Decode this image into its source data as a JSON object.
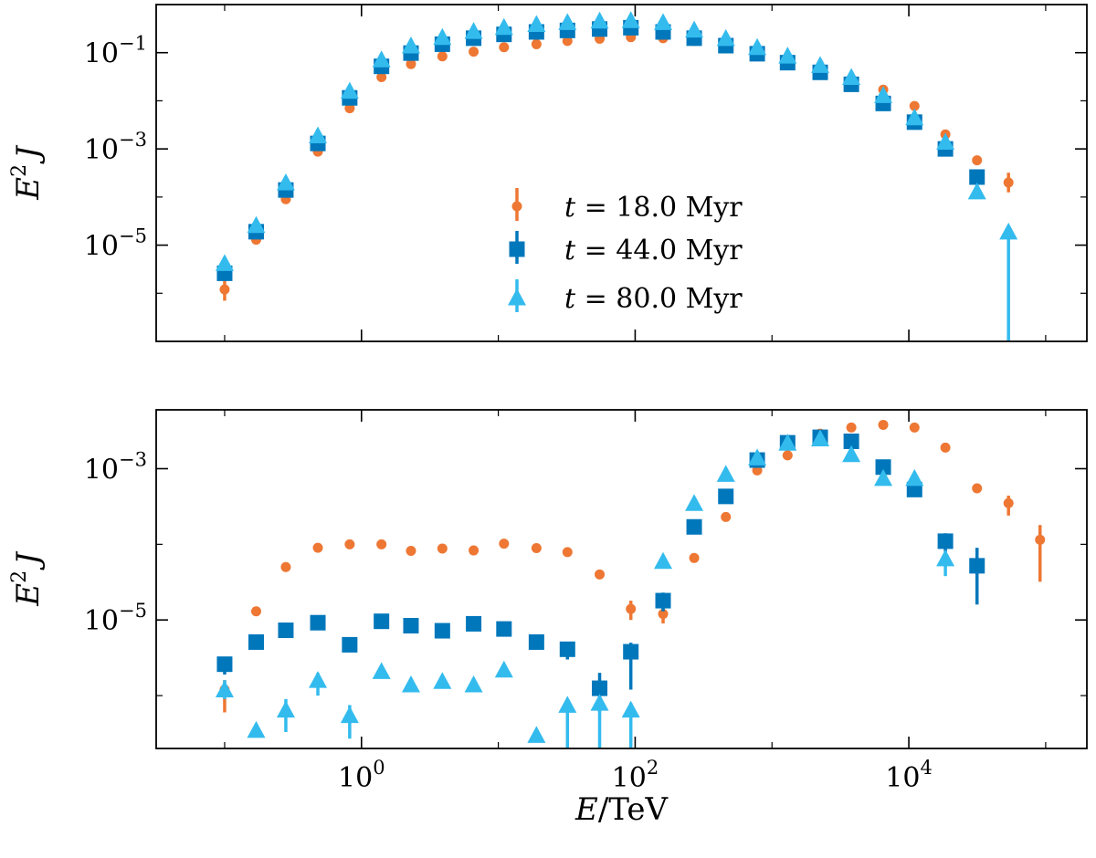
{
  "colors": {
    "t18": "#ee7733",
    "t44": "#0077bb",
    "t80": "#33bbee"
  },
  "chart_data": [
    {
      "type": "scatter",
      "panel": "top",
      "xscale": "log",
      "yscale": "log",
      "xlim": [
        0.0316,
        200000
      ],
      "ylim": [
        1e-07,
        1
      ],
      "xticks": [
        1,
        100,
        10000
      ],
      "xtick_labels": [
        "",
        "",
        ""
      ],
      "yticks": [
        1e-05,
        0.001,
        0.1
      ],
      "ytick_labels": [
        "10^-5",
        "10^-3",
        "10^-1"
      ],
      "ylabel": "E^2 J",
      "xlabel": "",
      "legend": {
        "placement": "center",
        "entries": [
          "t = 18.0 Myr",
          "t = 44.0 Myr",
          "t = 80.0 Myr"
        ]
      },
      "series": [
        {
          "name": "t = 18.0 Myr",
          "marker": "circle",
          "color_key": "t18",
          "points": [
            {
              "x": 0.1,
              "y": 1.2e-06,
              "lo": 7e-07,
              "hi": 2e-06
            },
            {
              "x": 0.17,
              "y": 1.3e-05
            },
            {
              "x": 0.28,
              "y": 9e-05
            },
            {
              "x": 0.48,
              "y": 0.00088
            },
            {
              "x": 0.82,
              "y": 0.007
            },
            {
              "x": 1.4,
              "y": 0.031
            },
            {
              "x": 2.3,
              "y": 0.058
            },
            {
              "x": 3.9,
              "y": 0.084
            },
            {
              "x": 6.6,
              "y": 0.105
            },
            {
              "x": 11,
              "y": 0.13
            },
            {
              "x": 19,
              "y": 0.15
            },
            {
              "x": 32,
              "y": 0.175
            },
            {
              "x": 55,
              "y": 0.195
            },
            {
              "x": 93,
              "y": 0.21
            },
            {
              "x": 160,
              "y": 0.2
            },
            {
              "x": 270,
              "y": 0.175
            },
            {
              "x": 460,
              "y": 0.14
            },
            {
              "x": 780,
              "y": 0.105
            },
            {
              "x": 1300,
              "y": 0.068
            },
            {
              "x": 2250,
              "y": 0.046
            },
            {
              "x": 3800,
              "y": 0.029
            },
            {
              "x": 6500,
              "y": 0.017
            },
            {
              "x": 11000,
              "y": 0.0078
            },
            {
              "x": 18500,
              "y": 0.002
            },
            {
              "x": 31500,
              "y": 0.00058
            },
            {
              "x": 53500,
              "y": 0.0002,
              "lo": 0.000125,
              "hi": 0.00032
            }
          ]
        },
        {
          "name": "t = 44.0 Myr",
          "marker": "square",
          "color_key": "t44",
          "points": [
            {
              "x": 0.1,
              "y": 2.6e-06
            },
            {
              "x": 0.17,
              "y": 1.9e-05
            },
            {
              "x": 0.28,
              "y": 0.00014
            },
            {
              "x": 0.48,
              "y": 0.0013
            },
            {
              "x": 0.82,
              "y": 0.0115
            },
            {
              "x": 1.4,
              "y": 0.052
            },
            {
              "x": 2.3,
              "y": 0.098
            },
            {
              "x": 3.9,
              "y": 0.15
            },
            {
              "x": 6.6,
              "y": 0.2
            },
            {
              "x": 11,
              "y": 0.24
            },
            {
              "x": 19,
              "y": 0.27
            },
            {
              "x": 32,
              "y": 0.29
            },
            {
              "x": 55,
              "y": 0.31
            },
            {
              "x": 93,
              "y": 0.33
            },
            {
              "x": 160,
              "y": 0.27
            },
            {
              "x": 270,
              "y": 0.2
            },
            {
              "x": 460,
              "y": 0.14
            },
            {
              "x": 780,
              "y": 0.095
            },
            {
              "x": 1300,
              "y": 0.062
            },
            {
              "x": 2250,
              "y": 0.039
            },
            {
              "x": 3800,
              "y": 0.022
            },
            {
              "x": 6500,
              "y": 0.0088
            },
            {
              "x": 11000,
              "y": 0.0036
            },
            {
              "x": 18500,
              "y": 0.001
            },
            {
              "x": 31500,
              "y": 0.00026,
              "lo": 0.00018,
              "hi": 0.00032
            }
          ]
        },
        {
          "name": "t = 80.0 Myr",
          "marker": "triangle",
          "color_key": "t80",
          "points": [
            {
              "x": 0.1,
              "y": 4.2e-06
            },
            {
              "x": 0.17,
              "y": 2.6e-05
            },
            {
              "x": 0.28,
              "y": 0.0002
            },
            {
              "x": 0.48,
              "y": 0.0019
            },
            {
              "x": 0.82,
              "y": 0.016
            },
            {
              "x": 1.4,
              "y": 0.072
            },
            {
              "x": 2.3,
              "y": 0.14
            },
            {
              "x": 3.9,
              "y": 0.21
            },
            {
              "x": 6.6,
              "y": 0.28
            },
            {
              "x": 11,
              "y": 0.34
            },
            {
              "x": 19,
              "y": 0.39
            },
            {
              "x": 32,
              "y": 0.43
            },
            {
              "x": 55,
              "y": 0.46
            },
            {
              "x": 93,
              "y": 0.47
            },
            {
              "x": 160,
              "y": 0.43
            },
            {
              "x": 270,
              "y": 0.3
            },
            {
              "x": 460,
              "y": 0.2
            },
            {
              "x": 780,
              "y": 0.13
            },
            {
              "x": 1300,
              "y": 0.086
            },
            {
              "x": 2250,
              "y": 0.055
            },
            {
              "x": 3800,
              "y": 0.031
            },
            {
              "x": 6500,
              "y": 0.013
            },
            {
              "x": 11000,
              "y": 0.0045
            },
            {
              "x": 18500,
              "y": 0.0014
            },
            {
              "x": 31500,
              "y": 0.00013
            },
            {
              "x": 53500,
              "y": 1.9e-05,
              "lo": 1e-07,
              "hi": 2.4e-05
            }
          ]
        }
      ]
    },
    {
      "type": "scatter",
      "panel": "bottom",
      "xscale": "log",
      "yscale": "log",
      "xlim": [
        0.0316,
        200000
      ],
      "ylim": [
        2e-07,
        0.006
      ],
      "xticks": [
        1,
        100,
        10000
      ],
      "xtick_labels": [
        "10^0",
        "10^2",
        "10^4"
      ],
      "yticks": [
        1e-05,
        0.001
      ],
      "ytick_labels": [
        "10^-5",
        "10^-3"
      ],
      "ylabel": "E^2 J",
      "xlabel": "E/TeV",
      "series": [
        {
          "name": "t = 18.0 Myr",
          "marker": "circle",
          "color_key": "t18",
          "points": [
            {
              "x": 0.1,
              "y": 1.2e-06,
              "lo": 6e-07,
              "hi": 1.6e-06
            },
            {
              "x": 0.17,
              "y": 1.3e-05
            },
            {
              "x": 0.28,
              "y": 5e-05
            },
            {
              "x": 0.48,
              "y": 9e-05
            },
            {
              "x": 0.82,
              "y": 0.0001
            },
            {
              "x": 1.4,
              "y": 0.0001
            },
            {
              "x": 2.3,
              "y": 8.2e-05
            },
            {
              "x": 3.9,
              "y": 8.8e-05
            },
            {
              "x": 6.6,
              "y": 8.3e-05
            },
            {
              "x": 11,
              "y": 0.000102
            },
            {
              "x": 19,
              "y": 8.9e-05
            },
            {
              "x": 32,
              "y": 7.9e-05
            },
            {
              "x": 55,
              "y": 4e-05
            },
            {
              "x": 93,
              "y": 1.4e-05,
              "lo": 1e-05,
              "hi": 1.8e-05
            },
            {
              "x": 160,
              "y": 1.2e-05,
              "lo": 9e-06,
              "hi": 1.6e-05
            },
            {
              "x": 270,
              "y": 6.6e-05
            },
            {
              "x": 460,
              "y": 0.00023
            },
            {
              "x": 780,
              "y": 0.00095
            },
            {
              "x": 1300,
              "y": 0.0015
            },
            {
              "x": 2250,
              "y": 0.0029
            },
            {
              "x": 3800,
              "y": 0.0035
            },
            {
              "x": 6500,
              "y": 0.0038
            },
            {
              "x": 11000,
              "y": 0.0035
            },
            {
              "x": 18500,
              "y": 0.0019
            },
            {
              "x": 31500,
              "y": 0.00055
            },
            {
              "x": 53500,
              "y": 0.00035,
              "lo": 0.00024,
              "hi": 0.00044
            },
            {
              "x": 91000,
              "y": 0.000115,
              "lo": 3.2e-05,
              "hi": 0.00018
            }
          ]
        },
        {
          "name": "t = 44.0 Myr",
          "marker": "square",
          "color_key": "t44",
          "points": [
            {
              "x": 0.1,
              "y": 2.6e-06,
              "lo": 1.9e-06,
              "hi": 3.2e-06
            },
            {
              "x": 0.17,
              "y": 5.1e-06
            },
            {
              "x": 0.28,
              "y": 7.3e-06
            },
            {
              "x": 0.48,
              "y": 9.2e-06
            },
            {
              "x": 0.82,
              "y": 4.7e-06,
              "lo": 3.8e-06,
              "hi": 5.2e-06
            },
            {
              "x": 1.4,
              "y": 9.6e-06
            },
            {
              "x": 2.3,
              "y": 8.4e-06
            },
            {
              "x": 3.9,
              "y": 7.2e-06
            },
            {
              "x": 6.6,
              "y": 8.9e-06
            },
            {
              "x": 11,
              "y": 7.6e-06
            },
            {
              "x": 19,
              "y": 5.1e-06,
              "lo": 4.1e-06,
              "hi": 6.1e-06
            },
            {
              "x": 32,
              "y": 4.1e-06,
              "lo": 3e-06,
              "hi": 5.1e-06
            },
            {
              "x": 55,
              "y": 1.25e-06,
              "lo": 6e-07,
              "hi": 2e-06
            },
            {
              "x": 93,
              "y": 3.8e-06,
              "lo": 1.2e-06,
              "hi": 5e-06
            },
            {
              "x": 160,
              "y": 1.8e-05,
              "lo": 1.3e-05,
              "hi": 2.3e-05
            },
            {
              "x": 270,
              "y": 0.00017
            },
            {
              "x": 460,
              "y": 0.00043
            },
            {
              "x": 780,
              "y": 0.0013
            },
            {
              "x": 1300,
              "y": 0.0022
            },
            {
              "x": 2250,
              "y": 0.0026
            },
            {
              "x": 3800,
              "y": 0.0023
            },
            {
              "x": 6500,
              "y": 0.00105
            },
            {
              "x": 11000,
              "y": 0.00053
            },
            {
              "x": 18500,
              "y": 0.00011,
              "lo": 8e-05,
              "hi": 0.00014
            },
            {
              "x": 31500,
              "y": 5.2e-05,
              "lo": 1.6e-05,
              "hi": 9e-05
            }
          ]
        },
        {
          "name": "t = 80.0 Myr",
          "marker": "triangle",
          "color_key": "t80",
          "points": [
            {
              "x": 0.1,
              "y": 1.2e-06,
              "lo": 9e-07,
              "hi": 1.6e-06
            },
            {
              "x": 0.17,
              "y": 3.5e-07
            },
            {
              "x": 0.28,
              "y": 6.5e-07,
              "lo": 3.3e-07,
              "hi": 9e-07
            },
            {
              "x": 0.48,
              "y": 1.6e-06,
              "lo": 1e-06,
              "hi": 2e-06
            },
            {
              "x": 0.82,
              "y": 5.5e-07,
              "lo": 2.7e-07,
              "hi": 7.5e-07
            },
            {
              "x": 1.4,
              "y": 2.1e-06
            },
            {
              "x": 2.3,
              "y": 1.4e-06
            },
            {
              "x": 3.9,
              "y": 1.55e-06
            },
            {
              "x": 6.6,
              "y": 1.4e-06
            },
            {
              "x": 11,
              "y": 2.2e-06
            },
            {
              "x": 19,
              "y": 3e-07
            },
            {
              "x": 32,
              "y": 7.5e-07,
              "lo": 2e-07,
              "hi": 9e-07
            },
            {
              "x": 55,
              "y": 8e-07,
              "lo": 2e-07,
              "hi": 9e-07
            },
            {
              "x": 93,
              "y": 6.5e-07,
              "lo": 2e-07,
              "hi": 8e-07
            },
            {
              "x": 160,
              "y": 6e-05
            },
            {
              "x": 270,
              "y": 0.00035
            },
            {
              "x": 460,
              "y": 0.00085
            },
            {
              "x": 780,
              "y": 0.0014
            },
            {
              "x": 1300,
              "y": 0.0022
            },
            {
              "x": 2250,
              "y": 0.0025
            },
            {
              "x": 3800,
              "y": 0.00155
            },
            {
              "x": 6500,
              "y": 0.00075
            },
            {
              "x": 11000,
              "y": 0.00075
            },
            {
              "x": 18500,
              "y": 6.5e-05,
              "lo": 3.8e-05,
              "hi": 8e-05
            }
          ]
        }
      ]
    }
  ]
}
